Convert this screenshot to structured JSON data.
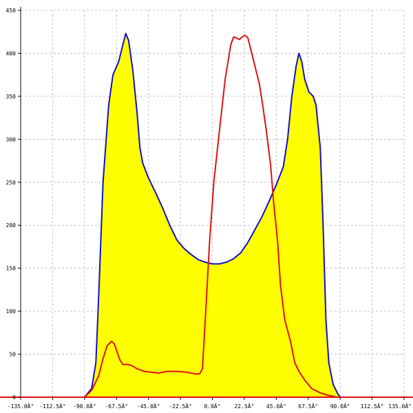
{
  "chart_data": {
    "type": "area",
    "title": "",
    "xlabel": "",
    "ylabel": "",
    "xlim": [
      -135,
      135
    ],
    "ylim": [
      0,
      450
    ],
    "grid": true,
    "x_ticks": [
      -135,
      -112.5,
      -90,
      -67.5,
      -45,
      -22.5,
      0,
      22.5,
      45,
      67.5,
      90,
      112.5,
      135
    ],
    "x_tick_labels": [
      "-135.0Â°",
      "-112.5Â°",
      "-90.0Â°",
      "-67.5Â°",
      "-45.0Â°",
      "-22.5Â°",
      "0.0Â°",
      "22.5Â°",
      "45.0Â°",
      "67.5Â°",
      "90.0Â°",
      "112.5Â°",
      "135.0Â°"
    ],
    "y_ticks": [
      0,
      50,
      100,
      150,
      200,
      250,
      300,
      350,
      400,
      450
    ],
    "y_tick_labels": [
      "0",
      "50",
      "100",
      "150",
      "200",
      "250",
      "300",
      "350",
      "400",
      "450"
    ],
    "series": [
      {
        "color": "#1010c8",
        "fill": "#ffff00",
        "points": [
          [
            -135,
            0
          ],
          [
            -90,
            0
          ],
          [
            -85,
            10
          ],
          [
            -82,
            40
          ],
          [
            -80,
            120
          ],
          [
            -77,
            250
          ],
          [
            -73,
            340
          ],
          [
            -70,
            375
          ],
          [
            -66,
            390
          ],
          [
            -63,
            410
          ],
          [
            -61,
            423
          ],
          [
            -59,
            415
          ],
          [
            -56,
            380
          ],
          [
            -53,
            330
          ],
          [
            -51,
            290
          ],
          [
            -49,
            272
          ],
          [
            -45,
            255
          ],
          [
            -40,
            238
          ],
          [
            -35,
            220
          ],
          [
            -30,
            200
          ],
          [
            -25,
            183
          ],
          [
            -20,
            173
          ],
          [
            -15,
            166
          ],
          [
            -10,
            160
          ],
          [
            -5,
            157
          ],
          [
            0,
            155
          ],
          [
            5,
            155
          ],
          [
            10,
            157
          ],
          [
            15,
            161
          ],
          [
            20,
            168
          ],
          [
            25,
            180
          ],
          [
            30,
            195
          ],
          [
            35,
            210
          ],
          [
            40,
            228
          ],
          [
            45,
            247
          ],
          [
            50,
            268
          ],
          [
            53,
            300
          ],
          [
            56,
            350
          ],
          [
            59,
            385
          ],
          [
            61,
            400
          ],
          [
            63,
            390
          ],
          [
            65,
            370
          ],
          [
            68,
            355
          ],
          [
            71,
            350
          ],
          [
            73,
            340
          ],
          [
            76,
            290
          ],
          [
            78,
            200
          ],
          [
            80,
            90
          ],
          [
            82,
            40
          ],
          [
            85,
            15
          ],
          [
            88,
            5
          ],
          [
            90,
            0
          ],
          [
            135,
            0
          ]
        ]
      },
      {
        "color": "#e01010",
        "points": [
          [
            -135,
            0
          ],
          [
            -90,
            0
          ],
          [
            -85,
            8
          ],
          [
            -80,
            25
          ],
          [
            -77,
            45
          ],
          [
            -74,
            60
          ],
          [
            -71,
            65
          ],
          [
            -69,
            62
          ],
          [
            -67,
            52
          ],
          [
            -65,
            43
          ],
          [
            -63,
            38
          ],
          [
            -60,
            38
          ],
          [
            -57,
            37
          ],
          [
            -53,
            33
          ],
          [
            -48,
            30
          ],
          [
            -43,
            29
          ],
          [
            -38,
            28
          ],
          [
            -32,
            30
          ],
          [
            -25,
            30
          ],
          [
            -18,
            29
          ],
          [
            -12,
            27
          ],
          [
            -9,
            27
          ],
          [
            -7,
            33
          ],
          [
            -5,
            90
          ],
          [
            -2,
            180
          ],
          [
            1,
            250
          ],
          [
            5,
            310
          ],
          [
            9,
            370
          ],
          [
            13,
            410
          ],
          [
            15,
            419
          ],
          [
            17,
            418
          ],
          [
            19,
            416
          ],
          [
            21,
            419
          ],
          [
            23,
            421
          ],
          [
            25,
            418
          ],
          [
            27,
            405
          ],
          [
            30,
            385
          ],
          [
            33,
            365
          ],
          [
            35,
            345
          ],
          [
            38,
            310
          ],
          [
            41,
            270
          ],
          [
            43,
            230
          ],
          [
            46,
            180
          ],
          [
            48,
            130
          ],
          [
            51,
            90
          ],
          [
            55,
            65
          ],
          [
            58,
            40
          ],
          [
            61,
            30
          ],
          [
            65,
            20
          ],
          [
            70,
            10
          ],
          [
            76,
            5
          ],
          [
            82,
            2
          ],
          [
            88,
            0
          ],
          [
            135,
            0
          ]
        ]
      }
    ]
  }
}
